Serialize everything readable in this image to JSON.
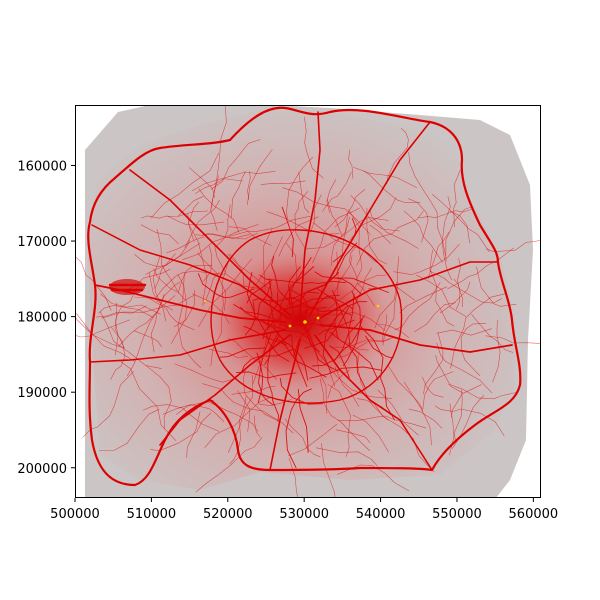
{
  "map": {
    "x_range": [
      500000,
      561000
    ],
    "y_range": [
      152000,
      204000
    ],
    "x_axis_inverted": false,
    "y_axis_inverted": true,
    "x_ticks": [
      500000,
      510000,
      520000,
      530000,
      540000,
      550000,
      560000
    ],
    "y_ticks": [
      160000,
      170000,
      180000,
      190000,
      200000
    ],
    "x_tick_labels": [
      "500000",
      "510000",
      "520000",
      "530000",
      "540000",
      "550000",
      "560000"
    ],
    "y_tick_labels": [
      "160000",
      "170000",
      "180000",
      "190000",
      "200000"
    ],
    "colors": {
      "background_density": "#cbc5c5",
      "density_mid": "#d9a0a0",
      "density_high": "#e06b6b",
      "roads": "#dd0000",
      "hotspot": "#ffcc00"
    },
    "layers": [
      "density surface (grey to red)",
      "road network (red lines)"
    ]
  }
}
